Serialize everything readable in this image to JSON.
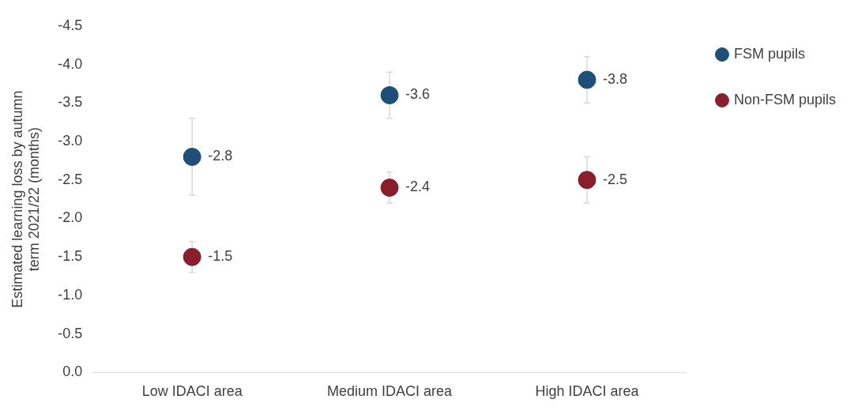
{
  "chart_data": {
    "type": "scatter",
    "ylabel": "Estimated learning loss by autumn term 2021/22 (months)",
    "categories": [
      "Low IDACI area",
      "Medium IDACI area",
      "High IDACI area"
    ],
    "series": [
      {
        "name": "FSM pupils",
        "color": "#1f4e79",
        "values": [
          -2.8,
          -3.6,
          -3.8
        ],
        "errors": [
          [
            -3.3,
            -2.3
          ],
          [
            -3.9,
            -3.3
          ],
          [
            -4.1,
            -3.5
          ]
        ]
      },
      {
        "name": "Non-FSM pupils",
        "color": "#8b1e2d",
        "values": [
          -1.5,
          -2.4,
          -2.5
        ],
        "errors": [
          [
            -1.7,
            -1.3
          ],
          [
            -2.6,
            -2.2
          ],
          [
            -2.8,
            -2.2
          ]
        ]
      }
    ],
    "ylim": [
      0,
      -4.5
    ],
    "yticks": [
      {
        "value": 0,
        "label": "0.0"
      },
      -0.5,
      {
        "value": -1,
        "label": "-1.0"
      },
      -1.5,
      {
        "value": -2,
        "label": "-2.0"
      },
      -2.5,
      {
        "value": -3,
        "label": "-3.0"
      },
      -3.5,
      {
        "value": -4,
        "label": "-4.0"
      },
      -4.5
    ],
    "grid": false,
    "legend": "right",
    "marker": "circle",
    "data_labels": true
  }
}
